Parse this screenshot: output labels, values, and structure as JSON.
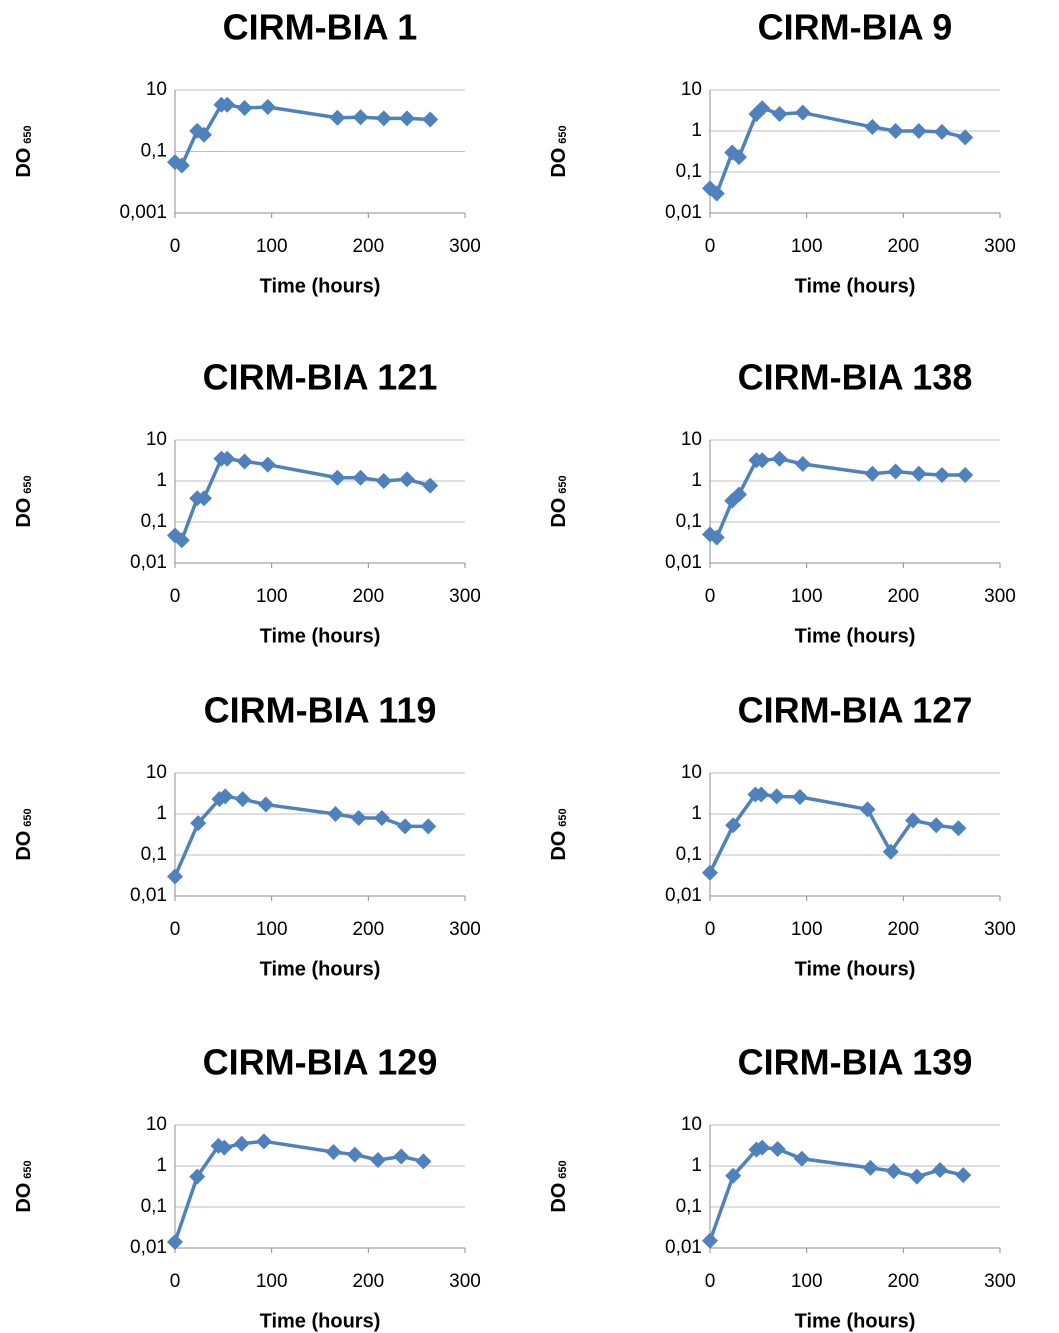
{
  "chart_data": [
    {
      "type": "line",
      "title": "CIRM-BIA 1",
      "xlabel": "Time (hours)",
      "ylabel": "DO",
      "ylabel_subscript": "650",
      "log_y": true,
      "grid": true,
      "xlim": [
        0,
        300
      ],
      "xticks": [
        0,
        100,
        200,
        300
      ],
      "ylim": [
        0.001,
        10
      ],
      "yticks": [
        {
          "value": 0.001,
          "label": "0,001"
        },
        {
          "value": 0.1,
          "label": "0,1"
        },
        10
      ],
      "series": [
        {
          "color": "#4f81bd",
          "x": [
            0,
            7,
            23,
            30,
            48,
            54,
            72,
            96,
            168,
            192,
            216,
            240,
            264
          ],
          "values": [
            0.045,
            0.035,
            0.47,
            0.35,
            3.3,
            3.3,
            2.6,
            2.8,
            1.25,
            1.3,
            1.2,
            1.2,
            1.1
          ]
        }
      ]
    },
    {
      "type": "line",
      "title": "CIRM-BIA 9",
      "xlabel": "Time (hours)",
      "ylabel": "DO",
      "ylabel_subscript": "650",
      "log_y": true,
      "grid": true,
      "xlim": [
        0,
        300
      ],
      "xticks": [
        0,
        100,
        200,
        300
      ],
      "ylim": [
        0.01,
        10
      ],
      "yticks": [
        {
          "value": 0.01,
          "label": "0,01"
        },
        {
          "value": 0.1,
          "label": "0,1"
        },
        1,
        10
      ],
      "series": [
        {
          "color": "#4f81bd",
          "x": [
            0,
            7,
            23,
            30,
            48,
            54,
            72,
            96,
            168,
            192,
            216,
            240,
            264
          ],
          "values": [
            0.04,
            0.03,
            0.3,
            0.23,
            2.6,
            3.6,
            2.6,
            2.8,
            1.25,
            1,
            1,
            0.95,
            0.7
          ]
        }
      ]
    },
    {
      "type": "line",
      "title": "CIRM-BIA 121",
      "xlabel": "Time (hours)",
      "ylabel": "DO",
      "ylabel_subscript": "650",
      "log_y": true,
      "grid": true,
      "xlim": [
        0,
        300
      ],
      "xticks": [
        0,
        100,
        200,
        300
      ],
      "ylim": [
        0.01,
        10
      ],
      "yticks": [
        {
          "value": 0.01,
          "label": "0,01"
        },
        {
          "value": 0.1,
          "label": "0,1"
        },
        1,
        10
      ],
      "series": [
        {
          "color": "#4f81bd",
          "x": [
            0,
            7,
            23,
            30,
            48,
            54,
            72,
            96,
            168,
            192,
            216,
            240,
            264
          ],
          "values": [
            0.047,
            0.036,
            0.38,
            0.38,
            3.5,
            3.5,
            3,
            2.5,
            1.2,
            1.2,
            1,
            1.1,
            0.77
          ]
        }
      ]
    },
    {
      "type": "line",
      "title": "CIRM-BIA 138",
      "xlabel": "Time (hours)",
      "ylabel": "DO",
      "ylabel_subscript": "650",
      "log_y": true,
      "grid": true,
      "xlim": [
        0,
        300
      ],
      "xticks": [
        0,
        100,
        200,
        300
      ],
      "ylim": [
        0.01,
        10
      ],
      "yticks": [
        {
          "value": 0.01,
          "label": "0,01"
        },
        {
          "value": 0.1,
          "label": "0,1"
        },
        1,
        10
      ],
      "series": [
        {
          "color": "#4f81bd",
          "x": [
            0,
            7,
            23,
            30,
            48,
            54,
            72,
            96,
            168,
            192,
            216,
            240,
            264
          ],
          "values": [
            0.05,
            0.042,
            0.33,
            0.47,
            3.2,
            3.2,
            3.5,
            2.6,
            1.5,
            1.7,
            1.5,
            1.4,
            1.4
          ]
        }
      ]
    },
    {
      "type": "line",
      "title": "CIRM-BIA 119",
      "xlabel": "Time (hours)",
      "ylabel": "DO",
      "ylabel_subscript": "650",
      "log_y": true,
      "grid": true,
      "xlim": [
        0,
        300
      ],
      "xticks": [
        0,
        100,
        200,
        300
      ],
      "ylim": [
        0.01,
        10
      ],
      "yticks": [
        {
          "value": 0.01,
          "label": "0,01"
        },
        {
          "value": 0.1,
          "label": "0,1"
        },
        1,
        10
      ],
      "series": [
        {
          "color": "#4f81bd",
          "x": [
            0,
            24,
            46,
            52,
            70,
            94,
            166,
            190,
            214,
            238,
            262
          ],
          "values": [
            0.03,
            0.6,
            2.3,
            2.7,
            2.3,
            1.7,
            1,
            0.8,
            0.8,
            0.5,
            0.5
          ]
        }
      ]
    },
    {
      "type": "line",
      "title": "CIRM-BIA 127",
      "xlabel": "Time (hours)",
      "ylabel": "DO",
      "ylabel_subscript": "650",
      "log_y": true,
      "grid": true,
      "xlim": [
        0,
        300
      ],
      "xticks": [
        0,
        100,
        200,
        300
      ],
      "ylim": [
        0.01,
        10
      ],
      "yticks": [
        {
          "value": 0.01,
          "label": "0,01"
        },
        {
          "value": 0.1,
          "label": "0,1"
        },
        1,
        10
      ],
      "series": [
        {
          "color": "#4f81bd",
          "x": [
            0,
            24,
            47,
            53,
            69,
            93,
            163,
            187,
            210,
            234,
            257
          ],
          "values": [
            0.037,
            0.53,
            3,
            3,
            2.7,
            2.6,
            1.3,
            0.12,
            0.7,
            0.53,
            0.45
          ]
        }
      ]
    },
    {
      "type": "line",
      "title": "CIRM-BIA 129",
      "xlabel": "Time (hours)",
      "ylabel": "DO",
      "ylabel_subscript": "650",
      "log_y": true,
      "grid": true,
      "xlim": [
        0,
        300
      ],
      "xticks": [
        0,
        100,
        200,
        300
      ],
      "ylim": [
        0.01,
        10
      ],
      "yticks": [
        {
          "value": 0.01,
          "label": "0,01"
        },
        {
          "value": 0.1,
          "label": "0,1"
        },
        1,
        10
      ],
      "series": [
        {
          "color": "#4f81bd",
          "x": [
            0,
            23,
            45,
            51,
            69,
            92,
            164,
            186,
            210,
            234,
            257
          ],
          "values": [
            0.014,
            0.55,
            3.1,
            2.8,
            3.5,
            4,
            2.2,
            1.9,
            1.4,
            1.7,
            1.3
          ]
        }
      ]
    },
    {
      "type": "line",
      "title": "CIRM-BIA 139",
      "xlabel": "Time (hours)",
      "ylabel": "DO",
      "ylabel_subscript": "650",
      "log_y": true,
      "grid": true,
      "xlim": [
        0,
        300
      ],
      "xticks": [
        0,
        100,
        200,
        300
      ],
      "ylim": [
        0.01,
        10
      ],
      "yticks": [
        {
          "value": 0.01,
          "label": "0,01"
        },
        {
          "value": 0.1,
          "label": "0,1"
        },
        1,
        10
      ],
      "series": [
        {
          "color": "#4f81bd",
          "x": [
            0,
            24,
            48,
            54,
            70,
            95,
            166,
            190,
            214,
            238,
            262
          ],
          "values": [
            0.015,
            0.58,
            2.5,
            2.8,
            2.6,
            1.5,
            0.9,
            0.75,
            0.55,
            0.8,
            0.6
          ]
        }
      ]
    }
  ]
}
